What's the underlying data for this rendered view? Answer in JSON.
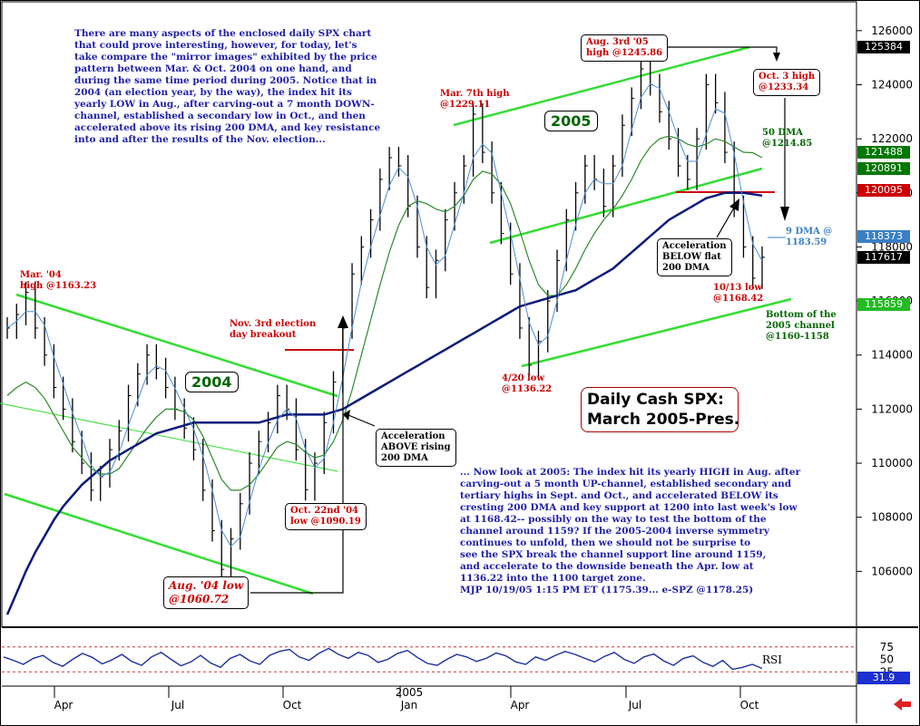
{
  "chart_data": {
    "type": "candlestick",
    "title": "Daily Cash SPX:\nMarch 2005-Pres.",
    "ylim": [
      1040.0,
      1270.0
    ],
    "y_ticks": [
      "1260.00",
      "1240.00",
      "1220.00",
      "1200.00",
      "1180.00",
      "1160.00",
      "1140.00",
      "1120.00",
      "1100.00",
      "1080.00",
      "1060.00"
    ],
    "x_ticks": [
      "Apr",
      "Jul",
      "Oct",
      "Jan",
      "Apr",
      "Jul",
      "Oct"
    ],
    "x_year_label": "2005",
    "price_tags": [
      {
        "value": "1253.84",
        "color": "#000000"
      },
      {
        "value": "1214.88",
        "color": "#007700"
      },
      {
        "value": "1208.91",
        "color": "#007700"
      },
      {
        "value": "1200.95",
        "color": "#cc0000"
      },
      {
        "value": "1183.73",
        "color": "#3a7fc4"
      },
      {
        "value": "1176.17",
        "color": "#000000"
      },
      {
        "value": "1158.59",
        "color": "#22bb22"
      }
    ],
    "series": [
      {
        "name": "SPX daily",
        "values": [
          1150.0,
          1155.0,
          1163.23,
          1150.0,
          1140.0,
          1128.0,
          1120.0,
          1108.0,
          1100.0,
          1090.0,
          1095.0,
          1105.0,
          1112.0,
          1125.0,
          1133.0,
          1140.0,
          1135.0,
          1128.0,
          1120.0,
          1113.0,
          1105.0,
          1090.0,
          1075.0,
          1060.72,
          1072.0,
          1085.0,
          1100.0,
          1108.0,
          1115.0,
          1125.0,
          1120.0,
          1105.0,
          1090.19,
          1100.0,
          1115.0,
          1130.0,
          1150.0,
          1170.0,
          1180.0,
          1190.0,
          1205.0,
          1213.0,
          1210.0,
          1195.0,
          1180.0,
          1165.0,
          1175.0,
          1190.0,
          1200.0,
          1210.0,
          1229.11,
          1215.0,
          1200.0,
          1185.0,
          1170.0,
          1150.0,
          1136.22,
          1145.0,
          1160.0,
          1175.0,
          1190.0,
          1200.0,
          1210.0,
          1205.0,
          1195.0,
          1210.0,
          1225.0,
          1235.0,
          1245.86,
          1240.0,
          1230.0,
          1220.0,
          1210.0,
          1205.0,
          1220.0,
          1240.0,
          1233.34,
          1215.0,
          1195.0,
          1180.0,
          1168.42,
          1176.17
        ]
      },
      {
        "name": "50 DMA",
        "values": [
          1125.0,
          1128.0,
          1130.0,
          1128.0,
          1124.0,
          1118.0,
          1112.0,
          1106.0,
          1102.0,
          1098.0,
          1096.0,
          1096.0,
          1098.0,
          1103.0,
          1108.0,
          1113.0,
          1117.0,
          1120.0,
          1120.0,
          1119.0,
          1116.0,
          1110.0,
          1102.0,
          1094.0,
          1090.0,
          1090.0,
          1092.0,
          1096.0,
          1101.0,
          1106.0,
          1108.0,
          1107.0,
          1104.0,
          1102.0,
          1103.0,
          1108.0,
          1116.0,
          1127.0,
          1140.0,
          1153.0,
          1166.0,
          1178.0,
          1188.0,
          1195.0,
          1197.0,
          1196.0,
          1194.0,
          1193.0,
          1195.0,
          1199.0,
          1205.0,
          1208.0,
          1207.0,
          1203.0,
          1196.0,
          1186.0,
          1175.0,
          1166.0,
          1162.0,
          1162.0,
          1166.0,
          1172.0,
          1179.0,
          1185.0,
          1190.0,
          1194.0,
          1199.0,
          1205.0,
          1212.0,
          1217.0,
          1220.0,
          1221.0,
          1220.0,
          1218.0,
          1217.0,
          1218.0,
          1220.0,
          1219.0,
          1217.0,
          1215.0,
          1214.85,
          1213.0
        ]
      },
      {
        "name": "200 DMA",
        "values": [
          1044.0,
          1052.0,
          1060.0,
          1067.0,
          1073.0,
          1079.0,
          1084.0,
          1088.0,
          1092.0,
          1095.0,
          1098.0,
          1101.0,
          1103.0,
          1105.0,
          1107.0,
          1109.0,
          1111.0,
          1112.0,
          1113.0,
          1114.0,
          1115.0,
          1115.0,
          1115.0,
          1115.0,
          1115.0,
          1115.0,
          1115.0,
          1115.0,
          1116.0,
          1117.0,
          1118.0,
          1118.0,
          1118.0,
          1118.0,
          1118.0,
          1119.0,
          1120.0,
          1122.0,
          1124.0,
          1126.0,
          1128.0,
          1130.0,
          1132.0,
          1134.0,
          1136.0,
          1138.0,
          1140.0,
          1142.0,
          1144.0,
          1146.0,
          1148.0,
          1150.0,
          1152.0,
          1154.0,
          1156.0,
          1158.0,
          1159.0,
          1160.0,
          1161.0,
          1162.0,
          1163.0,
          1164.0,
          1166.0,
          1168.0,
          1170.0,
          1172.0,
          1175.0,
          1178.0,
          1181.0,
          1184.0,
          1187.0,
          1190.0,
          1192.0,
          1194.0,
          1196.0,
          1198.0,
          1199.0,
          1200.0,
          1200.0,
          1200.0,
          1199.5,
          1199.0
        ]
      },
      {
        "name": "RSI",
        "values": [
          55.0,
          48.0,
          40.0,
          52.0,
          58.0,
          44.0,
          36.0,
          50.0,
          62.0,
          54.0,
          41.0,
          49.0,
          60.0,
          46.0,
          38.0,
          55.0,
          64.0,
          50.0,
          37.0,
          45.0,
          58.0,
          43.0,
          34.0,
          52.0,
          60.0,
          47.0,
          40.0,
          58.0,
          66.0,
          70.0,
          55.0,
          48.0,
          62.0,
          72.0,
          60.0,
          52.0,
          64.0,
          58.0,
          44.0,
          50.0,
          62.0,
          68.0,
          54.0,
          42.0,
          38.0,
          50.0,
          60.0,
          55.0,
          46.0,
          52.0,
          63.0,
          57.0,
          45.0,
          40.0,
          55.0,
          48.0,
          58.0,
          66.0,
          60.0,
          52.0,
          45.0,
          56.0,
          64.0,
          50.0,
          42.0,
          55.0,
          61.0,
          47.0,
          38.0,
          52.0,
          57.0,
          44.0,
          36.0,
          48.0,
          30.0,
          34.0,
          40.0,
          31.9
        ]
      }
    ],
    "rsi_label": "RSI",
    "rsi_ticks": [
      "75",
      "50",
      "25"
    ],
    "rsi_value": "31.9"
  },
  "notes": {
    "intro": "There are many aspects of the enclosed daily SPX chart\nthat could prove interesting, however, for today, let's\ntake compare the \"mirror images\" exhibited by the price\npattern between Mar. & Oct. 2004 on one hand, and\nduring the same time period during 2005. Notice that in\n2004 (an election year, by the way), the index hit its\nyearly LOW in Aug., after carving-out a 7 month DOWN-\nchannel, established a secondary low in Oct., and then\naccelerated above its rising 200 DMA, and key resistance\ninto and after the results of the Nov. election...",
    "body": "... Now look at 2005: The index hit its yearly HIGH in Aug. after\ncarving-out a 5 month UP-channel, established secondary and\ntertiary highs in Sept. and Oct., and accelerated BELOW its\ncresting 200 DMA and key support at 1200 into last week's low\nat 1168.42-- possibly on the way to test the bottom of the\nchannel around 1159? If the 2005-2004 inverse symmetry\ncontinues to unfold, then we should not be surprise to\nsee the SPX break the channel support line around 1159,\nand accelerate to the downside beneath the Apr. low at\n1136.22 into the 1100 target zone.\nMJP 10/19/05 1:15 PM ET (1175.39... e-SPZ @1178.25)"
  },
  "annotations": {
    "mar04_high": "Mar. '04\nhigh @1163.23",
    "nov3_election": "Nov. 3rd election\nday breakout",
    "year_2004": "2004",
    "year_2005": "2005",
    "accel_above": "Acceleration\nABOVE rising\n200 DMA",
    "oct22_low": "Oct. 22nd '04\nlow @1090.19",
    "aug04_low": "Aug. '04 low\n@1060.72",
    "mar7_high": "Mar. 7th high\n@1229.11",
    "aug3_high": "Aug. 3rd '05\nhigh @1245.86",
    "oct3_high": "Oct. 3 high\n@1233.34",
    "dma50": "50 DMA\n@1214.85",
    "accel_below": "Acceleration\nBELOW flat\n200 DMA",
    "dma9": "9 DMA @\n1183.59",
    "oct13_low": "10/13 low\n@1168.42",
    "bottom_channel": "Bottom of the\n2005 channel\n@1160-1158",
    "apr20_low": "4/20 low\n@1136.22"
  },
  "colors": {
    "price_bars": "#000000",
    "dma200": "#0a1a7a",
    "dma50": "#2d8a2d",
    "dma9": "#4b8fd6",
    "channel": "#33dd33",
    "resistance": "#cc0000",
    "note_text": "#1f1fa8"
  }
}
